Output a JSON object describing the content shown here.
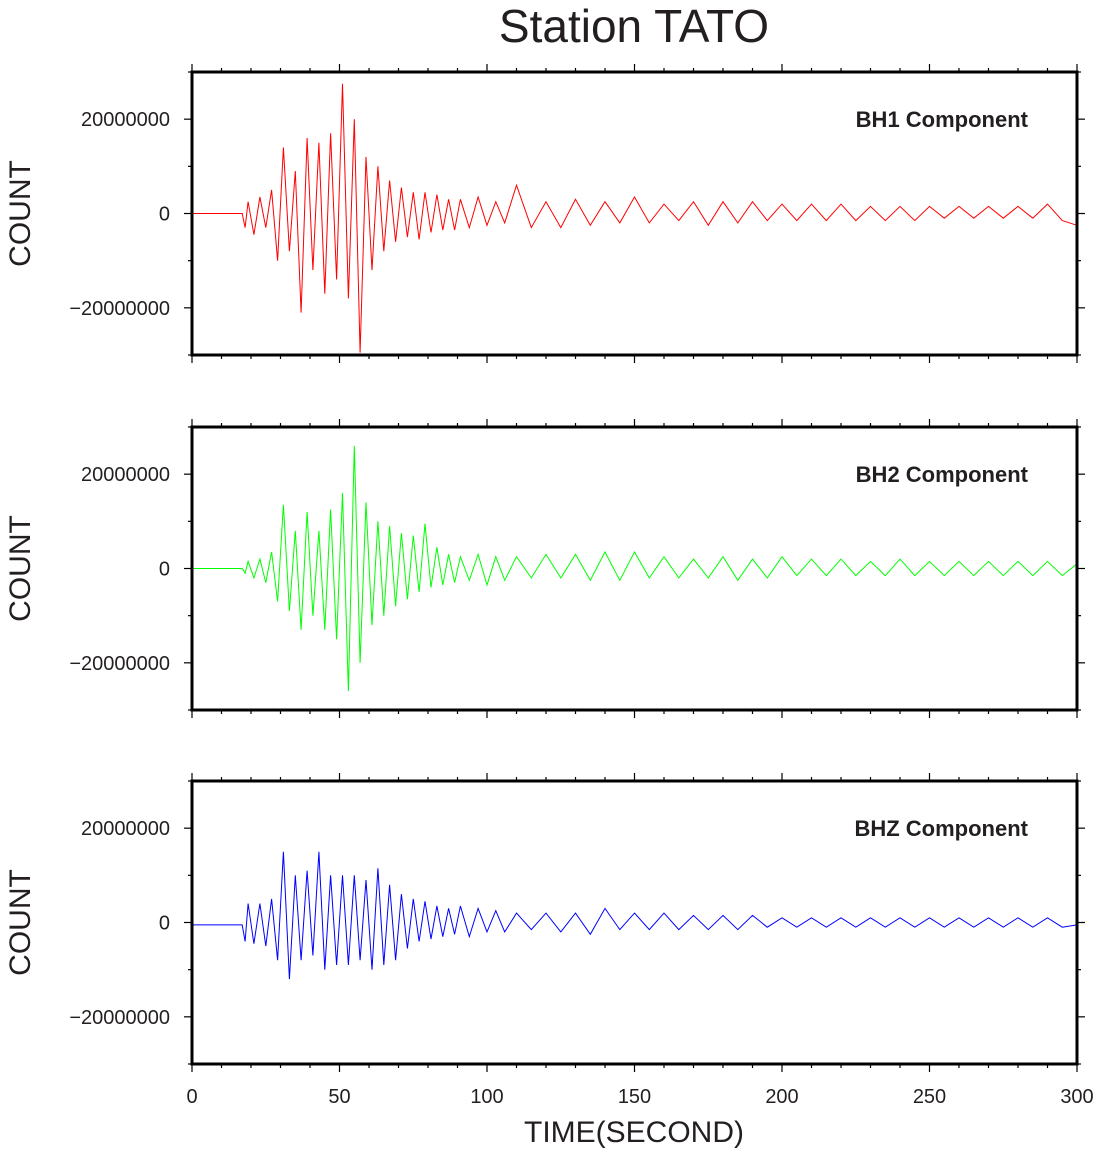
{
  "chart_data": {
    "type": "line",
    "title": "Station TATO",
    "xlabel": "TIME(SECOND)",
    "xlim": [
      0,
      300
    ],
    "x_ticks": [
      "0",
      "50",
      "100",
      "150",
      "200",
      "250",
      "300"
    ],
    "grid": false,
    "panels": [
      {
        "name": "BH1 Component",
        "color": "#ff0000",
        "ylabel": "COUNT",
        "ylim": [
          -30000000,
          30000000
        ],
        "y_ticks": [
          "20000000",
          "0",
          "−20000000"
        ],
        "x": [
          0,
          17,
          18,
          19,
          21,
          23,
          25,
          27,
          29,
          31,
          33,
          35,
          37,
          39,
          41,
          43,
          45,
          47,
          49,
          51,
          53,
          55,
          57,
          59,
          61,
          63,
          65,
          67,
          69,
          71,
          73,
          75,
          77,
          79,
          81,
          83,
          85,
          87,
          89,
          91,
          94,
          97,
          100,
          103,
          106,
          110,
          115,
          120,
          125,
          130,
          135,
          140,
          145,
          150,
          155,
          160,
          165,
          170,
          175,
          180,
          185,
          190,
          195,
          200,
          205,
          210,
          215,
          220,
          225,
          230,
          235,
          240,
          245,
          250,
          255,
          260,
          265,
          270,
          275,
          280,
          285,
          290,
          295,
          300
        ],
        "y": [
          0,
          0,
          -3000000,
          2500000,
          -4500000,
          3500000,
          -3000000,
          5000000,
          -10000000,
          14000000,
          -8000000,
          9000000,
          -21000000,
          16000000,
          -12000000,
          15000000,
          -17000000,
          17000000,
          -14000000,
          27500000,
          -18000000,
          20000000,
          -29500000,
          12000000,
          -12000000,
          10000000,
          -8000000,
          7000000,
          -6000000,
          5500000,
          -5000000,
          4500000,
          -5500000,
          4500000,
          -4000000,
          4000000,
          -3500000,
          3000000,
          -3500000,
          3000000,
          -3000000,
          3500000,
          -2500000,
          2500000,
          -2000000,
          6000000,
          -3000000,
          2500000,
          -3000000,
          3000000,
          -2500000,
          2500000,
          -2000000,
          3500000,
          -2000000,
          2000000,
          -1500000,
          2500000,
          -2500000,
          2500000,
          -2000000,
          2500000,
          -1500000,
          2000000,
          -1500000,
          2000000,
          -1500000,
          2000000,
          -1500000,
          1500000,
          -1500000,
          1500000,
          -1500000,
          1500000,
          -1000000,
          1500000,
          -1000000,
          1500000,
          -1000000,
          1500000,
          -1000000,
          2000000,
          -1500000,
          -2500000
        ]
      },
      {
        "name": "BH2 Component",
        "color": "#00ff00",
        "ylabel": "COUNT",
        "ylim": [
          -30000000,
          30000000
        ],
        "y_ticks": [
          "20000000",
          "0",
          "−20000000"
        ],
        "x": [
          0,
          17,
          18,
          19,
          21,
          23,
          25,
          27,
          29,
          31,
          33,
          35,
          37,
          39,
          41,
          43,
          45,
          47,
          49,
          51,
          53,
          55,
          57,
          59,
          61,
          63,
          65,
          67,
          69,
          71,
          73,
          75,
          77,
          79,
          81,
          83,
          85,
          87,
          89,
          91,
          94,
          97,
          100,
          103,
          106,
          110,
          115,
          120,
          125,
          130,
          135,
          140,
          145,
          150,
          155,
          160,
          165,
          170,
          175,
          180,
          185,
          190,
          195,
          200,
          205,
          210,
          215,
          220,
          225,
          230,
          235,
          240,
          245,
          250,
          255,
          260,
          265,
          270,
          275,
          280,
          285,
          290,
          295,
          300
        ],
        "y": [
          0,
          0,
          -1000000,
          1500000,
          -2000000,
          2000000,
          -3000000,
          3500000,
          -7000000,
          13500000,
          -9000000,
          8000000,
          -13000000,
          12000000,
          -10000000,
          8000000,
          -13000000,
          12500000,
          -15000000,
          16000000,
          -26000000,
          26000000,
          -20000000,
          14000000,
          -12000000,
          10000000,
          -10000000,
          9000000,
          -8000000,
          7500000,
          -6500000,
          7000000,
          -5000000,
          9500000,
          -4000000,
          4500000,
          -3500000,
          3000000,
          -3000000,
          2500000,
          -2500000,
          3000000,
          -3500000,
          2500000,
          -2500000,
          2500000,
          -2000000,
          3000000,
          -2000000,
          3000000,
          -2500000,
          3500000,
          -2500000,
          3500000,
          -2000000,
          2500000,
          -2000000,
          2000000,
          -2000000,
          2500000,
          -2500000,
          2000000,
          -2000000,
          2500000,
          -1500000,
          2000000,
          -1500000,
          2000000,
          -1500000,
          1500000,
          -1500000,
          2000000,
          -1500000,
          1500000,
          -1500000,
          1500000,
          -1500000,
          1500000,
          -1500000,
          1500000,
          -1500000,
          1500000,
          -1500000,
          1000000
        ]
      },
      {
        "name": "BHZ Component",
        "color": "#0000ff",
        "ylabel": "COUNT",
        "ylim": [
          -30000000,
          30000000
        ],
        "y_ticks": [
          "20000000",
          "0",
          "−20000000"
        ],
        "x": [
          0,
          17,
          18,
          19,
          21,
          23,
          25,
          27,
          29,
          31,
          33,
          35,
          37,
          39,
          41,
          43,
          45,
          47,
          49,
          51,
          53,
          55,
          57,
          59,
          61,
          63,
          65,
          67,
          69,
          71,
          73,
          75,
          77,
          79,
          81,
          83,
          85,
          87,
          89,
          91,
          94,
          97,
          100,
          103,
          106,
          110,
          115,
          120,
          125,
          130,
          135,
          140,
          145,
          150,
          155,
          160,
          165,
          170,
          175,
          180,
          185,
          190,
          195,
          200,
          205,
          210,
          215,
          220,
          225,
          230,
          235,
          240,
          245,
          250,
          255,
          260,
          265,
          270,
          275,
          280,
          285,
          290,
          295,
          300
        ],
        "y": [
          -500000,
          -500000,
          -4000000,
          4000000,
          -4500000,
          4000000,
          -5000000,
          5000000,
          -8000000,
          15000000,
          -12000000,
          10000000,
          -8000000,
          11000000,
          -7000000,
          15000000,
          -10000000,
          10000000,
          -9000000,
          10000000,
          -9000000,
          10000000,
          -8000000,
          9000000,
          -10000000,
          11500000,
          -9000000,
          8000000,
          -8000000,
          6000000,
          -5500000,
          5000000,
          -4000000,
          4500000,
          -3500000,
          3500000,
          -3000000,
          3000000,
          -2500000,
          3500000,
          -3000000,
          3000000,
          -2000000,
          2500000,
          -2000000,
          2000000,
          -1500000,
          2000000,
          -2000000,
          2000000,
          -2500000,
          3000000,
          -1500000,
          2000000,
          -1500000,
          2000000,
          -1500000,
          1500000,
          -1500000,
          1500000,
          -1500000,
          1500000,
          -1000000,
          1000000,
          -1000000,
          1000000,
          -1000000,
          1000000,
          -1000000,
          1000000,
          -1000000,
          1000000,
          -1000000,
          1000000,
          -1000000,
          1000000,
          -1000000,
          1000000,
          -1000000,
          1000000,
          -1000000,
          1000000,
          -1000000,
          -500000
        ]
      }
    ]
  }
}
